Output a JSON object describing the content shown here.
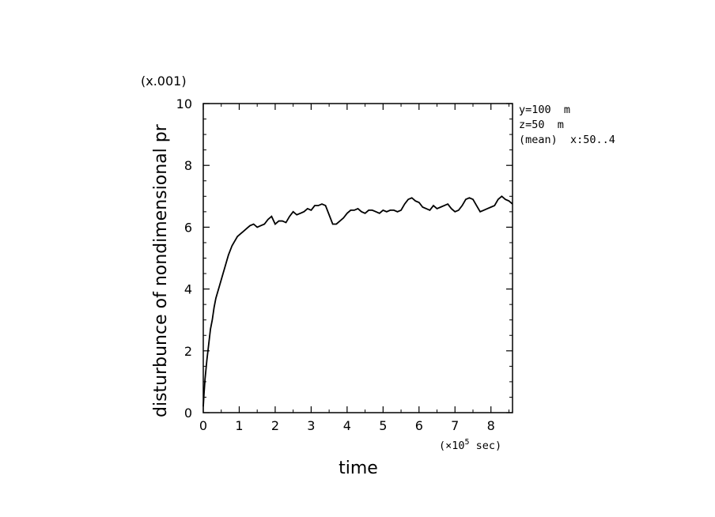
{
  "chart_data": {
    "type": "line",
    "xlabel": "time",
    "ylabel": "disturbunce of nondimensional pr",
    "x_unit_label": "(×10",
    "x_unit_exp": "5",
    "x_unit_suffix": " sec)",
    "y_scale_label": "(x.001)",
    "xlim": [
      0,
      8.6
    ],
    "ylim": [
      0,
      10
    ],
    "x_ticks": [
      0,
      1,
      2,
      3,
      4,
      5,
      6,
      7,
      8
    ],
    "y_ticks": [
      0,
      2,
      4,
      6,
      8,
      10
    ],
    "grid": false,
    "annotations": [
      "y=100  m",
      "z=50  m",
      "(mean)  x:50..4"
    ],
    "series": [
      {
        "x": [
          0,
          0.02,
          0.05,
          0.1,
          0.15,
          0.2,
          0.25,
          0.3,
          0.35,
          0.4,
          0.45,
          0.5,
          0.55,
          0.6,
          0.65,
          0.7,
          0.75,
          0.8,
          0.85,
          0.9,
          0.95,
          1.0,
          1.05,
          1.1,
          1.2,
          1.3,
          1.4,
          1.5,
          1.6,
          1.7,
          1.8,
          1.9,
          2.0,
          2.1,
          2.2,
          2.3,
          2.4,
          2.5,
          2.6,
          2.7,
          2.8,
          2.9,
          3.0,
          3.1,
          3.2,
          3.3,
          3.4,
          3.5,
          3.6,
          3.7,
          3.8,
          3.9,
          4.0,
          4.1,
          4.2,
          4.3,
          4.4,
          4.5,
          4.6,
          4.7,
          4.8,
          4.9,
          5.0,
          5.1,
          5.2,
          5.3,
          5.4,
          5.5,
          5.6,
          5.7,
          5.8,
          5.9,
          6.0,
          6.1,
          6.2,
          6.3,
          6.4,
          6.5,
          6.6,
          6.7,
          6.8,
          6.9,
          7.0,
          7.1,
          7.2,
          7.3,
          7.4,
          7.5,
          7.6,
          7.7,
          7.8,
          7.9,
          8.0,
          8.1,
          8.2,
          8.3,
          8.4,
          8.5,
          8.6
        ],
        "y": [
          0.2,
          0.6,
          1.1,
          1.7,
          2.2,
          2.7,
          3.0,
          3.4,
          3.7,
          3.9,
          4.1,
          4.3,
          4.5,
          4.7,
          4.9,
          5.1,
          5.25,
          5.4,
          5.5,
          5.6,
          5.7,
          5.75,
          5.8,
          5.85,
          5.95,
          6.05,
          6.1,
          6.0,
          6.05,
          6.1,
          6.25,
          6.35,
          6.1,
          6.2,
          6.2,
          6.15,
          6.35,
          6.5,
          6.4,
          6.45,
          6.5,
          6.6,
          6.55,
          6.7,
          6.7,
          6.75,
          6.7,
          6.4,
          6.1,
          6.1,
          6.2,
          6.3,
          6.45,
          6.55,
          6.55,
          6.6,
          6.5,
          6.45,
          6.55,
          6.55,
          6.5,
          6.45,
          6.55,
          6.5,
          6.55,
          6.55,
          6.5,
          6.55,
          6.75,
          6.9,
          6.95,
          6.85,
          6.8,
          6.65,
          6.6,
          6.55,
          6.7,
          6.6,
          6.65,
          6.7,
          6.75,
          6.6,
          6.5,
          6.55,
          6.7,
          6.9,
          6.95,
          6.9,
          6.7,
          6.5,
          6.55,
          6.6,
          6.65,
          6.7,
          6.9,
          7.0,
          6.9,
          6.85,
          6.75
        ]
      }
    ]
  }
}
